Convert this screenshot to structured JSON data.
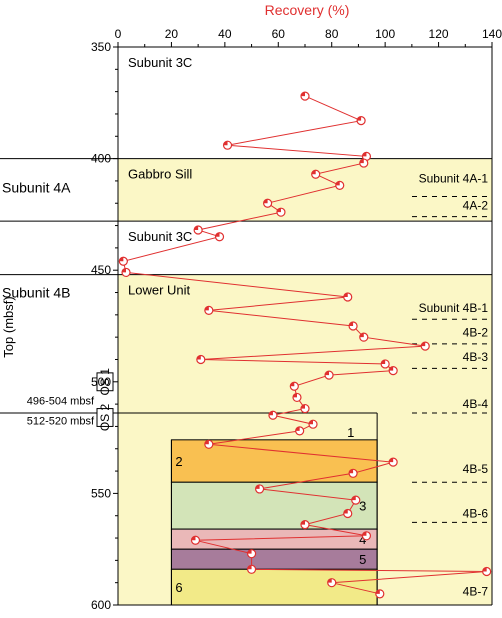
{
  "chart_data": {
    "type": "scatter",
    "xlabel": "Recovery (%)",
    "ylabel": "Top (mbsf)",
    "xlim": [
      0,
      140
    ],
    "ylim": [
      350,
      600
    ],
    "y_inverted": true,
    "x_ticks": [
      "0",
      "20",
      "40",
      "60",
      "80",
      "100",
      "120",
      "140"
    ],
    "y_ticks": [
      "350",
      "400",
      "450",
      "500",
      "550",
      "600"
    ],
    "y_tick_values": [
      350,
      400,
      450,
      500,
      550,
      600
    ],
    "x_axis_position": "top",
    "point_color": "#e03030",
    "line_color": "#e03030",
    "series": [
      {
        "x": [
          70,
          91,
          41,
          93,
          92,
          74,
          83,
          56,
          61,
          30,
          38,
          2,
          3,
          86,
          34,
          88,
          92,
          115,
          31,
          100,
          103,
          79,
          66,
          67,
          70,
          58,
          73,
          68,
          34,
          103,
          88,
          53,
          89,
          86,
          70,
          93,
          29,
          50,
          50,
          138,
          80,
          98
        ],
        "y": [
          372,
          383,
          394,
          399,
          402,
          407,
          412,
          420,
          424,
          432,
          435,
          446,
          451,
          462,
          468,
          475,
          480,
          484,
          490,
          492,
          495,
          497,
          502,
          507,
          512,
          515,
          519,
          522,
          528,
          536,
          541,
          548,
          553,
          559,
          564,
          569,
          571,
          577,
          584,
          585,
          590,
          595
        ]
      }
    ],
    "units": [
      {
        "label": "Subunit 3C",
        "top": 350,
        "bottom": 400,
        "fill": "#ffffff"
      },
      {
        "label": "Gabbro Sill",
        "top": 400,
        "bottom": 428,
        "fill": "#fbf7c6"
      },
      {
        "label": "Subunit 3C",
        "top": 428,
        "bottom": 452,
        "fill": "#ffffff"
      },
      {
        "label": "Lower Unit",
        "top": 452,
        "bottom": 600,
        "fill": "#fbf7c6"
      }
    ],
    "left_unit_labels": [
      {
        "label": "Subunit 4A",
        "y": 413
      },
      {
        "label": "Subunit 4B",
        "y": 460
      }
    ],
    "right_labels": [
      {
        "label": "Subunit 4A-1",
        "y": 409
      },
      {
        "label": "4A-2",
        "y": 421
      },
      {
        "label": "Subunit 4B-1",
        "y": 467
      },
      {
        "label": "4B-2",
        "y": 478
      },
      {
        "label": "4B-3",
        "y": 489
      },
      {
        "label": "4B-4",
        "y": 510
      },
      {
        "label": "4B-5",
        "y": 539
      },
      {
        "label": "4B-6",
        "y": 559
      },
      {
        "label": "4B-7",
        "y": 594
      }
    ],
    "right_dashes": [
      417,
      426,
      472,
      483,
      494,
      514,
      545,
      563
    ],
    "os_boxes": [
      {
        "label": "OS 1",
        "top": 496,
        "bottom": 504,
        "range": "496-504 mbsf"
      },
      {
        "label": "OS 2",
        "top": 512,
        "bottom": 520,
        "range": "512-520 mbsf"
      }
    ],
    "lithologic_units": [
      {
        "label": "1",
        "top": 514,
        "bottom": 526,
        "fill": "none"
      },
      {
        "label": "2",
        "top": 526,
        "bottom": 545,
        "fill": "#f9c051"
      },
      {
        "label": "3",
        "top": 545,
        "bottom": 566,
        "fill": "#d3e4b8"
      },
      {
        "label": "4",
        "top": 566,
        "bottom": 575,
        "fill": "#eab8b8"
      },
      {
        "label": "5",
        "top": 575,
        "bottom": 584,
        "fill": "#a77c9b"
      },
      {
        "label": "6",
        "top": 584,
        "bottom": 600,
        "fill": "#f2ea88"
      }
    ]
  }
}
